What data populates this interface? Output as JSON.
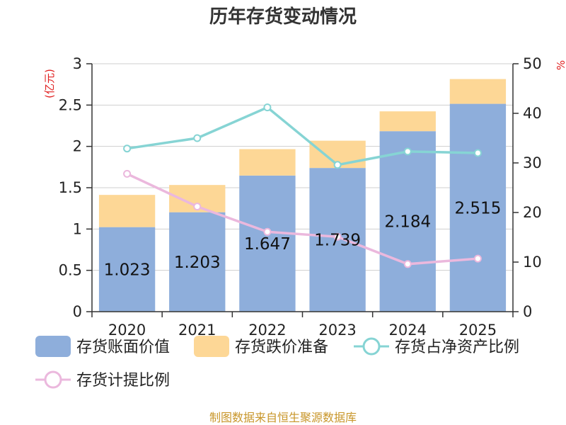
{
  "chart_data": {
    "type": "bar",
    "title": "历年存货变动情况",
    "categories": [
      "2020",
      "2021",
      "2022",
      "2023",
      "2024",
      "2025"
    ],
    "y_left": {
      "unit_label": "(亿元)",
      "ticks": [
        "0",
        "0.5",
        "1",
        "1.5",
        "2",
        "2.5",
        "3"
      ],
      "ylim": [
        0,
        3
      ]
    },
    "y_right": {
      "unit_label": "%",
      "ticks": [
        "0",
        "10",
        "20",
        "30",
        "40",
        "50"
      ],
      "ylim": [
        0,
        50
      ]
    },
    "series": [
      {
        "name": "存货账面价值",
        "kind": "bar",
        "stack": true,
        "axis": "left",
        "color": "#8eaedb",
        "values": [
          1.023,
          1.203,
          1.647,
          1.739,
          2.184,
          2.515
        ],
        "labels": [
          "1.023",
          "1.203",
          "1.647",
          "1.739",
          "2.184",
          "2.515"
        ]
      },
      {
        "name": "存货跌价准备",
        "kind": "bar",
        "stack": true,
        "axis": "left",
        "color": "#fdd796",
        "values": [
          0.39,
          0.33,
          0.32,
          0.33,
          0.24,
          0.3
        ]
      },
      {
        "name": "存货占净资产比例",
        "kind": "line",
        "axis": "right",
        "color": "#86d4d4",
        "values": [
          32.9,
          35.0,
          41.2,
          29.6,
          32.3,
          32.0
        ]
      },
      {
        "name": "存货计提比例",
        "kind": "line",
        "axis": "right",
        "color": "#ebb8dd",
        "values": [
          27.8,
          21.2,
          16.1,
          15.1,
          9.6,
          10.7
        ]
      }
    ]
  },
  "footer": {
    "source": "制图数据来自恒生聚源数据库"
  }
}
